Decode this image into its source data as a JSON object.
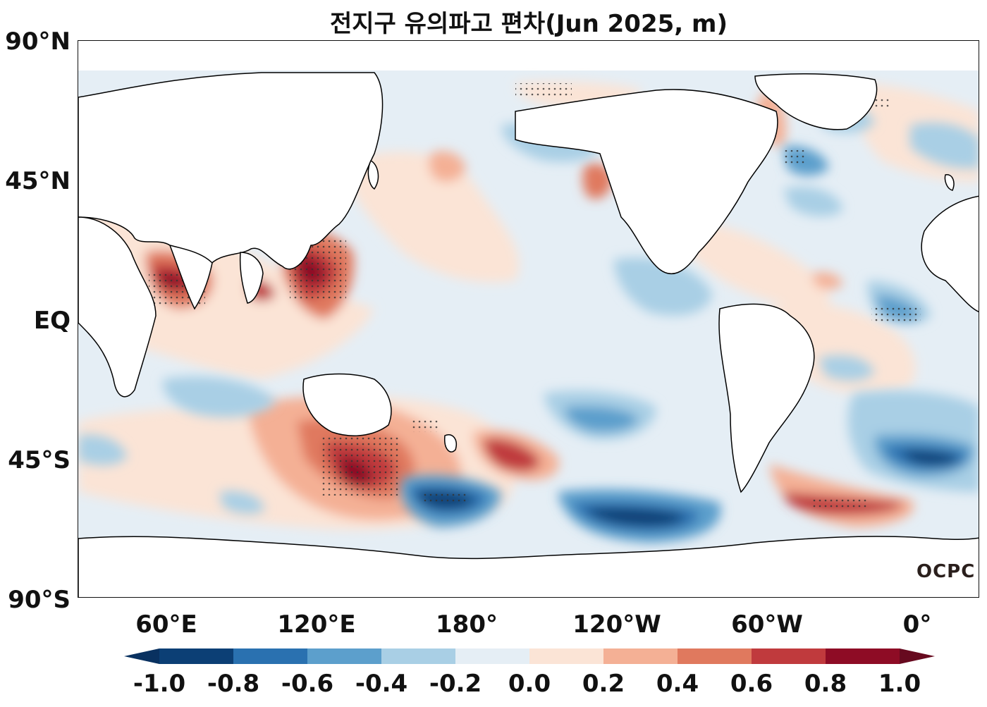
{
  "title": "전지구 유의파고 편차(Jun 2025, m)",
  "logo_text": "OCPC",
  "map": {
    "projection": "equirectangular",
    "lat_labels": [
      "90°N",
      "45°N",
      "EQ",
      "45°S",
      "90°S"
    ],
    "lon_labels": [
      "60°E",
      "120°E",
      "180°",
      "120°W",
      "60°W",
      "0°"
    ],
    "land_color": "#ffffff",
    "coastline_color": "#000000"
  },
  "colorbar": {
    "ticks": [
      "-1.0",
      "-0.8",
      "-0.6",
      "-0.4",
      "-0.2",
      "0.0",
      "0.2",
      "0.4",
      "0.6",
      "0.8",
      "1.0"
    ],
    "colors": [
      "#0c3f75",
      "#2a71b0",
      "#5c9fcc",
      "#a9cfe5",
      "#e5eef5",
      "#fbe4d6",
      "#f4b095",
      "#e0795e",
      "#c03a3d",
      "#8e0c25"
    ],
    "under_color": "#093160",
    "over_color": "#670a1f",
    "extend": "both"
  }
}
